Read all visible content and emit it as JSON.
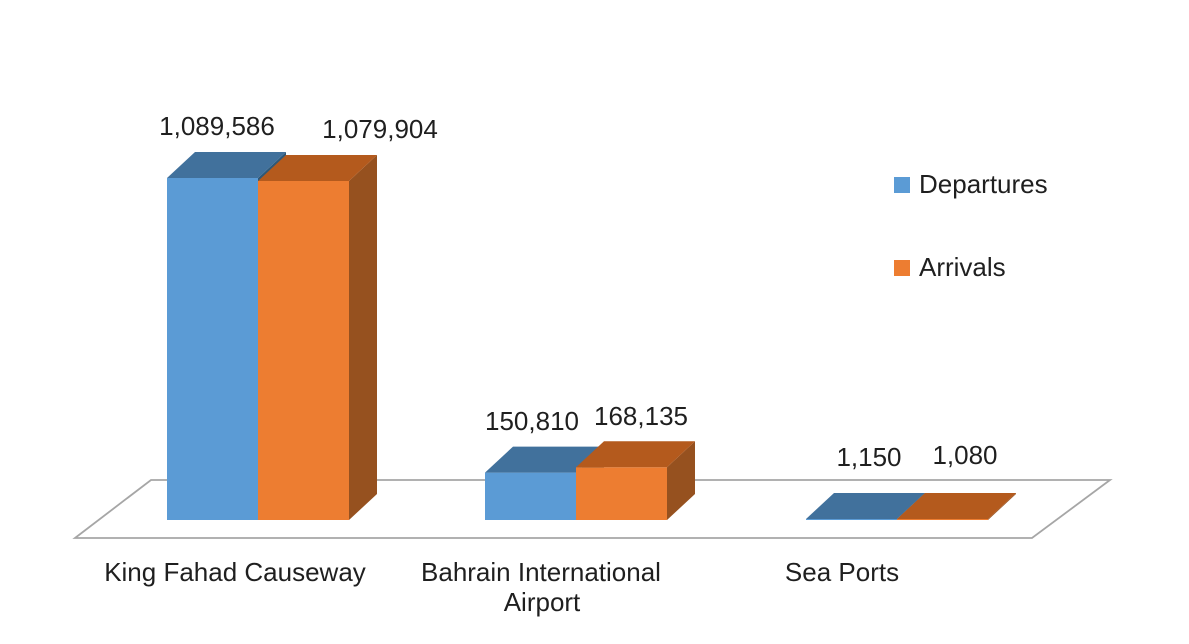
{
  "chart_data": {
    "type": "bar",
    "style": "3d-clustered-column",
    "title": "",
    "xlabel": "",
    "ylabel": "",
    "grid": false,
    "legend_position": "right",
    "background": "#FFFFFF",
    "text_color": "#1F1F1F",
    "floor_outline_color": "#A6A6A6",
    "categories": [
      "King Fahad Causeway",
      "Bahrain International Airport",
      "Sea Ports"
    ],
    "category_lines": [
      [
        "King Fahad Causeway"
      ],
      [
        "Bahrain International",
        "Airport"
      ],
      [
        "Sea Ports"
      ]
    ],
    "series": [
      {
        "name": "Departures",
        "values": [
          1089586,
          150810,
          1150
        ],
        "value_labels": [
          "1,089,586",
          "150,810",
          "1,150"
        ],
        "color": "#5B9BD5",
        "color_top": "#41719C",
        "color_side": "#2E5878"
      },
      {
        "name": "Arrivals",
        "values": [
          1079904,
          168135,
          1080
        ],
        "value_labels": [
          "1,079,904",
          "168,135",
          "1,080"
        ],
        "color": "#ED7D31",
        "color_top": "#B45A1D",
        "color_side": "#96511F"
      }
    ]
  },
  "legend": {
    "items": [
      {
        "label": "Departures",
        "color": "#5B9BD5"
      },
      {
        "label": "Arrivals",
        "color": "#ED7D31"
      }
    ]
  }
}
